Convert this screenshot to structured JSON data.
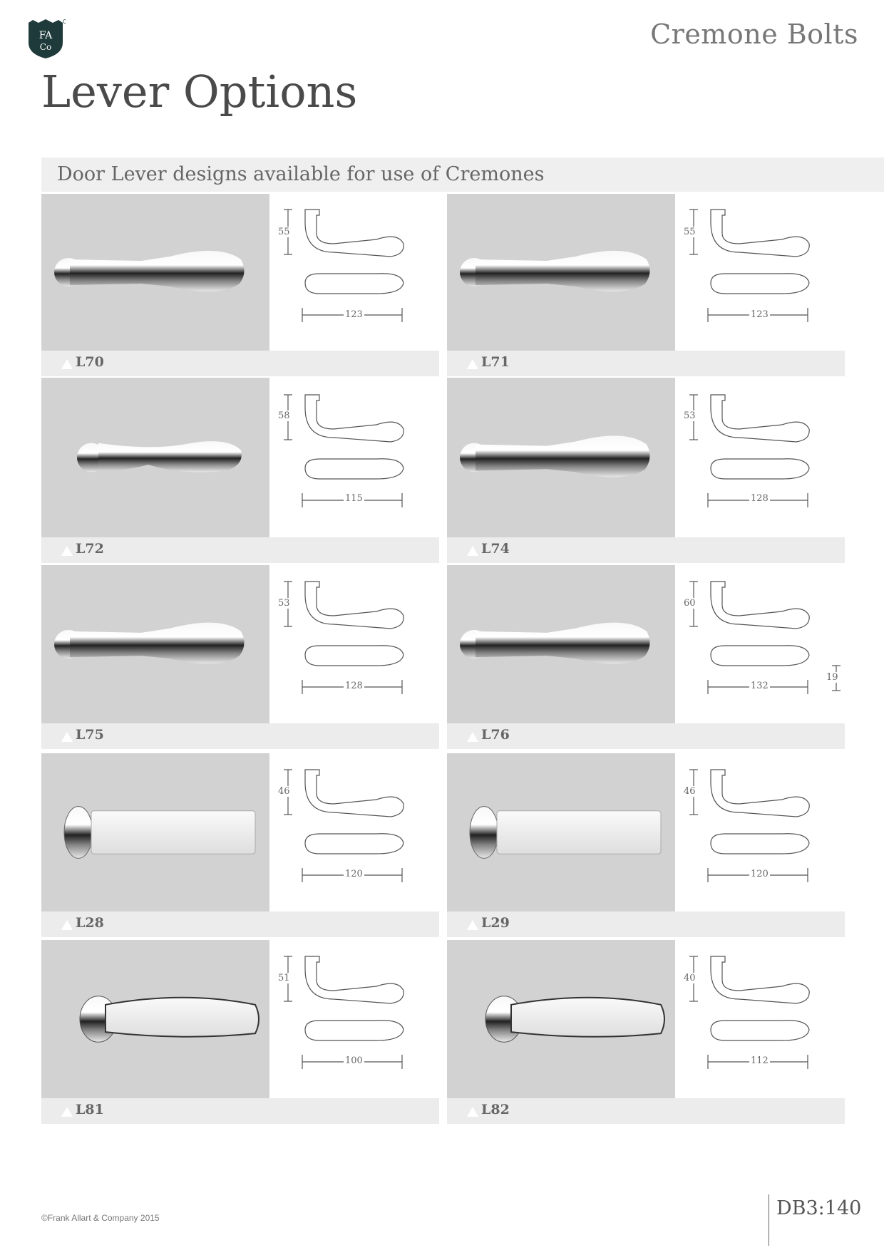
{
  "header": {
    "logo_text": "FA Co",
    "section": "Cremone Bolts",
    "title": "Lever Options"
  },
  "banner": "Door Lever designs available for use of Cremones",
  "levers": [
    {
      "code": "L70",
      "height": "55",
      "length": "123"
    },
    {
      "code": "L71",
      "height": "55",
      "length": "123"
    },
    {
      "code": "L72",
      "height": "58",
      "length": "115"
    },
    {
      "code": "L74",
      "height": "53",
      "length": "128"
    },
    {
      "code": "L75",
      "height": "53",
      "length": "128"
    },
    {
      "code": "L76",
      "height": "60",
      "length": "132",
      "depth": "19"
    },
    {
      "code": "L28",
      "height": "46",
      "length": "120"
    },
    {
      "code": "L29",
      "height": "46",
      "length": "120"
    },
    {
      "code": "L81",
      "height": "51",
      "length": "100"
    },
    {
      "code": "L82",
      "height": "40",
      "length": "112"
    }
  ],
  "footer": {
    "copyright": "©Frank Allart & Company 2015",
    "page": "DB3:140"
  }
}
